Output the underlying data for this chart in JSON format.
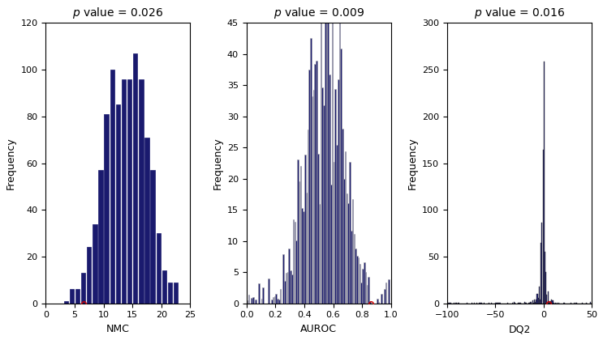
{
  "nmc": {
    "title": "$p$ value = 0.026",
    "xlabel": "NMC",
    "ylabel": "Frequency",
    "bar_color": "#1a1a6e",
    "edge_color": "#1a1a6e",
    "xlim": [
      0,
      25
    ],
    "ylim": [
      0,
      120
    ],
    "yticks": [
      0,
      20,
      40,
      60,
      80,
      100,
      120
    ],
    "xticks": [
      0,
      5,
      10,
      15,
      20,
      25
    ],
    "bin_lefts": [
      3,
      4,
      5,
      6,
      7,
      8,
      9,
      10,
      11,
      12,
      13,
      14,
      15,
      16,
      17,
      18,
      19,
      20,
      21,
      22
    ],
    "bin_heights": [
      1,
      6,
      6,
      13,
      24,
      34,
      57,
      81,
      100,
      85,
      96,
      96,
      107,
      96,
      71,
      57,
      30,
      14,
      9,
      9
    ],
    "bar_width": 0.75,
    "real_value": 6.5,
    "real_y": 0
  },
  "auroc": {
    "title": "$p$ value = 0.009",
    "xlabel": "AUROC",
    "ylabel": "Frequency",
    "bar_color": "#1a1a6e",
    "edge_color": "#aaaaaa",
    "xlim": [
      0,
      1
    ],
    "ylim": [
      0,
      45
    ],
    "yticks": [
      0,
      5,
      10,
      15,
      20,
      25,
      30,
      35,
      40,
      45
    ],
    "xticks": [
      0.0,
      0.2,
      0.4,
      0.6,
      0.8,
      1.0
    ],
    "bin_width": 0.01,
    "noise_seed": 77,
    "real_value": 0.862,
    "real_y": 0
  },
  "dq2": {
    "title": "$p$ value = 0.016",
    "xlabel": "DQ2",
    "ylabel": "Frequency",
    "bar_color": "#1a1a6e",
    "edge_color": "#333333",
    "xlim": [
      -100,
      50
    ],
    "ylim": [
      0,
      300
    ],
    "yticks": [
      0,
      50,
      100,
      150,
      200,
      250,
      300
    ],
    "xticks": [
      -100,
      -50,
      0,
      50
    ],
    "bin_width": 1.0,
    "real_value": 5.0,
    "real_y": 0
  },
  "marker_color": "#cc0000",
  "marker_size": 4,
  "fig_bg": "#ffffff",
  "tick_fontsize": 8,
  "label_fontsize": 9,
  "title_fontsize": 10
}
